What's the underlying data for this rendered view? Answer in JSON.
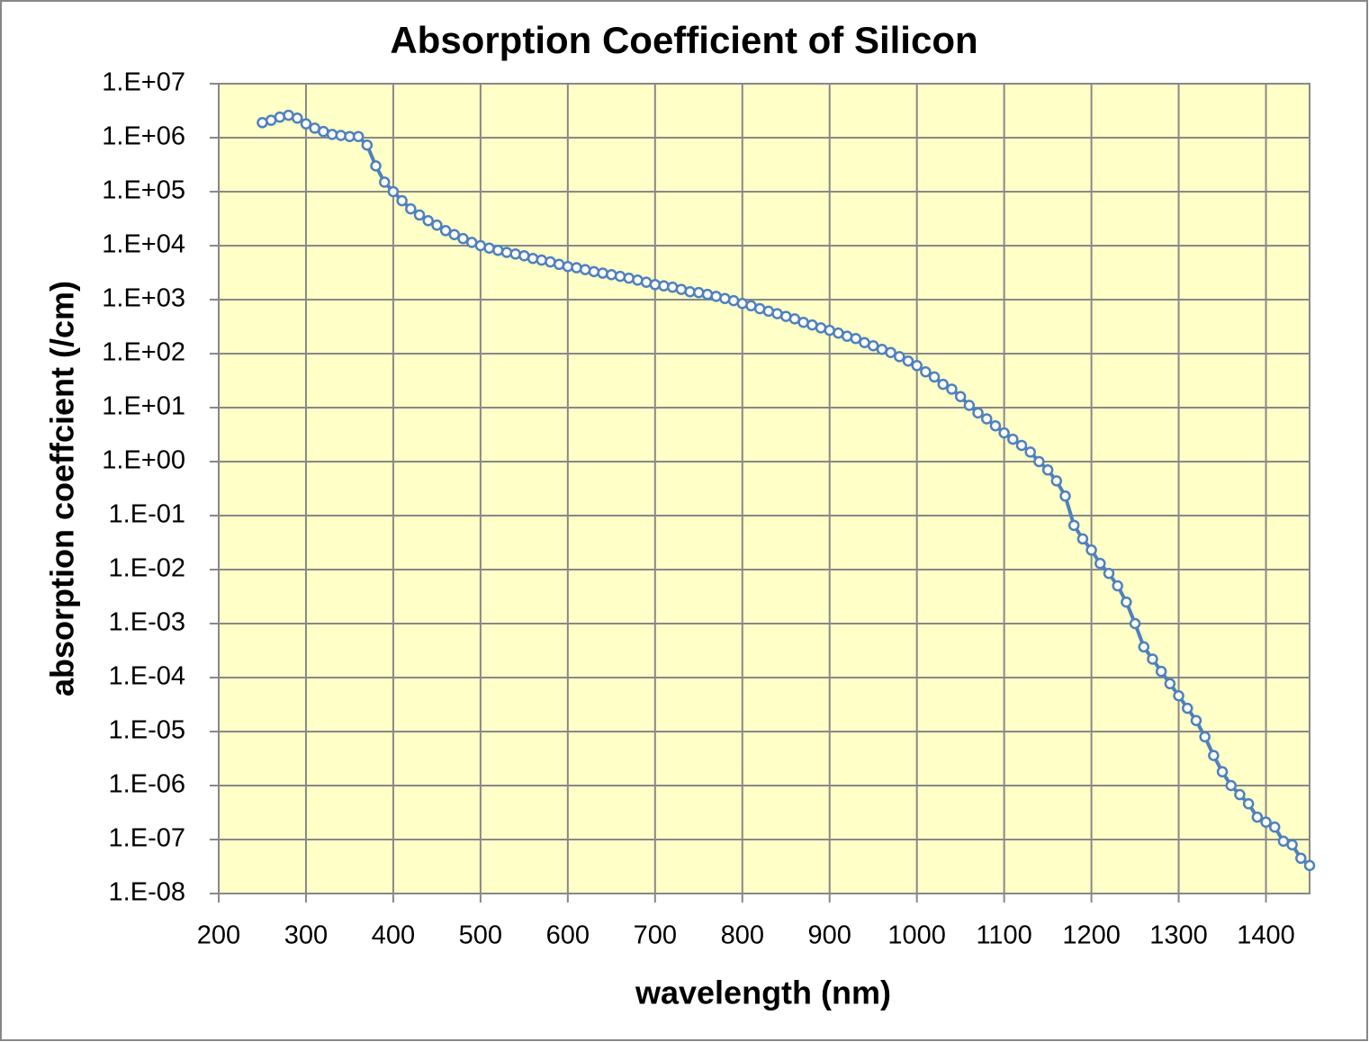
{
  "chart_data": {
    "type": "line",
    "title": "Absorption Coefficient of Silicon",
    "x_label": "wavelength (nm)",
    "y_label": "absorption coeffcient (/cm)",
    "log_y": true,
    "grid": true,
    "color": "#4f81bd",
    "marker": "circle",
    "plot_background": "#ffffc8",
    "xlim": [
      200,
      1450
    ],
    "xticks": [
      200,
      300,
      400,
      500,
      600,
      700,
      800,
      900,
      1000,
      1100,
      1200,
      1300,
      1400
    ],
    "ylim": [
      1e-08,
      10000000
    ],
    "yticks": [
      {
        "value": 1e-08,
        "label": "1.E-08"
      },
      {
        "value": 1e-07,
        "label": "1.E-07"
      },
      {
        "value": 1e-06,
        "label": "1.E-06"
      },
      {
        "value": 1e-05,
        "label": "1.E-05"
      },
      {
        "value": 0.0001,
        "label": "1.E-04"
      },
      {
        "value": 0.001,
        "label": "1.E-03"
      },
      {
        "value": 0.01,
        "label": "1.E-02"
      },
      {
        "value": 0.1,
        "label": "1.E-01"
      },
      {
        "value": 1,
        "label": "1.E+00"
      },
      {
        "value": 10,
        "label": "1.E+01"
      },
      {
        "value": 100,
        "label": "1.E+02"
      },
      {
        "value": 1000,
        "label": "1.E+03"
      },
      {
        "value": 10000,
        "label": "1.E+04"
      },
      {
        "value": 100000,
        "label": "1.E+05"
      },
      {
        "value": 1000000,
        "label": "1.E+06"
      },
      {
        "value": 10000000,
        "label": "1.E+07"
      }
    ],
    "x": [
      250,
      260,
      270,
      280,
      290,
      300,
      310,
      320,
      330,
      340,
      350,
      360,
      370,
      380,
      390,
      400,
      410,
      420,
      430,
      440,
      450,
      460,
      470,
      480,
      490,
      500,
      510,
      520,
      530,
      540,
      550,
      560,
      570,
      580,
      590,
      600,
      610,
      620,
      630,
      640,
      650,
      660,
      670,
      680,
      690,
      700,
      710,
      720,
      730,
      740,
      750,
      760,
      770,
      780,
      790,
      800,
      810,
      820,
      830,
      840,
      850,
      860,
      870,
      880,
      890,
      900,
      910,
      920,
      930,
      940,
      950,
      960,
      970,
      980,
      990,
      1000,
      1010,
      1020,
      1030,
      1040,
      1050,
      1060,
      1070,
      1080,
      1090,
      1100,
      1110,
      1120,
      1130,
      1140,
      1150,
      1160,
      1170,
      1180,
      1190,
      1200,
      1210,
      1220,
      1230,
      1240,
      1250,
      1260,
      1270,
      1280,
      1290,
      1300,
      1310,
      1320,
      1330,
      1340,
      1350,
      1360,
      1370,
      1380,
      1390,
      1400,
      1410,
      1420,
      1430,
      1440,
      1450
    ],
    "values": [
      1900000,
      2100000,
      2400000,
      2600000,
      2300000,
      1800000,
      1500000,
      1300000,
      1150000,
      1100000,
      1050000,
      1050000,
      730000,
      300000,
      150000,
      100000,
      68000,
      48000,
      37000,
      29000,
      24000,
      19000,
      16000,
      13500,
      11500,
      10000,
      9000,
      8200,
      7500,
      7000,
      6500,
      5800,
      5400,
      5000,
      4500,
      4100,
      3900,
      3600,
      3300,
      3100,
      2900,
      2700,
      2500,
      2300,
      2100,
      1900,
      1800,
      1700,
      1550,
      1400,
      1350,
      1250,
      1150,
      1050,
      960,
      850,
      770,
      680,
      610,
      550,
      490,
      440,
      380,
      340,
      300,
      270,
      240,
      210,
      190,
      160,
      140,
      120,
      105,
      88,
      73,
      60,
      46,
      37,
      27,
      22,
      16,
      11,
      8,
      6.2,
      4.6,
      3.4,
      2.6,
      2,
      1.5,
      1,
      0.7,
      0.44,
      0.23,
      0.066,
      0.037,
      0.023,
      0.013,
      0.0085,
      0.005,
      0.0025,
      0.001,
      0.00037,
      0.00022,
      0.00013,
      7.7e-05,
      4.6e-05,
      2.7e-05,
      1.6e-05,
      8e-06,
      3.6e-06,
      1.8e-06,
      1e-06,
      6.8e-07,
      4.6e-07,
      2.6e-07,
      2.1e-07,
      1.7e-07,
      9.3e-08,
      8e-08,
      4.5e-08,
      3.3e-08
    ]
  }
}
